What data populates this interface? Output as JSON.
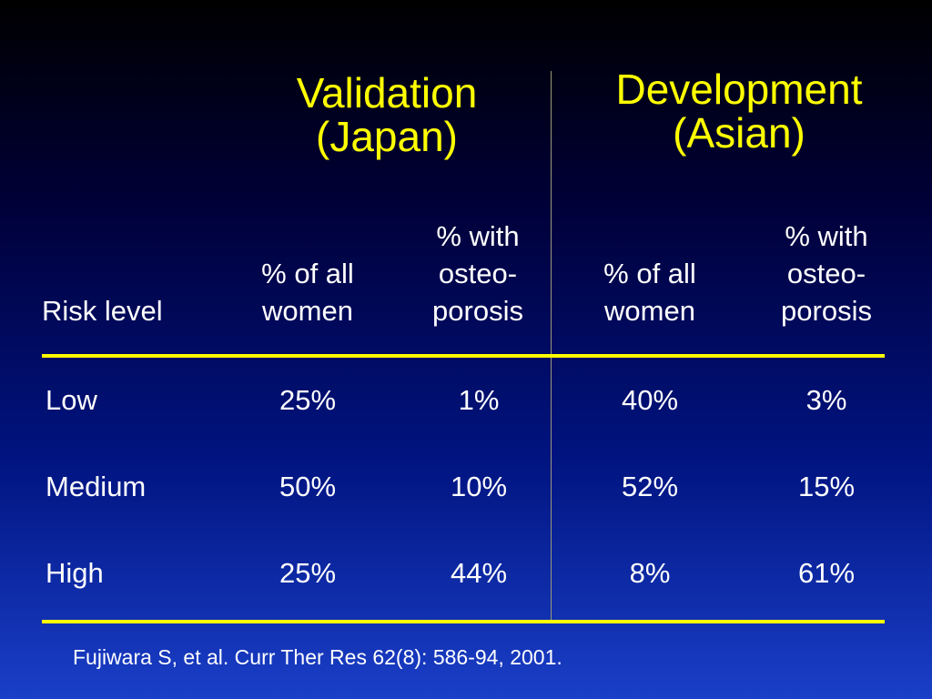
{
  "groups": {
    "validation": {
      "line1": "Validation",
      "line2": "(Japan)"
    },
    "development": {
      "line1": "Development",
      "line2": "(Asian)"
    }
  },
  "columns": {
    "risk_level": "Risk level",
    "pct_women": {
      "line1": "% of all",
      "line2": "women"
    },
    "pct_osteo": {
      "line1": "% with",
      "line2": "osteo-",
      "line3": "porosis"
    }
  },
  "rows": [
    {
      "level": "Low",
      "val_women": "25%",
      "val_osteo": "1%",
      "dev_women": "40%",
      "dev_osteo": "3%"
    },
    {
      "level": "Medium",
      "val_women": "50%",
      "val_osteo": "10%",
      "dev_women": "52%",
      "dev_osteo": "15%"
    },
    {
      "level": "High",
      "val_women": "25%",
      "val_osteo": "44%",
      "dev_women": "8%",
      "dev_osteo": "61%"
    }
  ],
  "citation": "Fujiwara S, et al. Curr Ther Res 62(8): 586-94, 2001.",
  "colors": {
    "title": "#ffff00",
    "rule": "#ffff00",
    "text": "#ffffff",
    "background_top": "#000000",
    "background_bottom": "#1a3fc8"
  }
}
